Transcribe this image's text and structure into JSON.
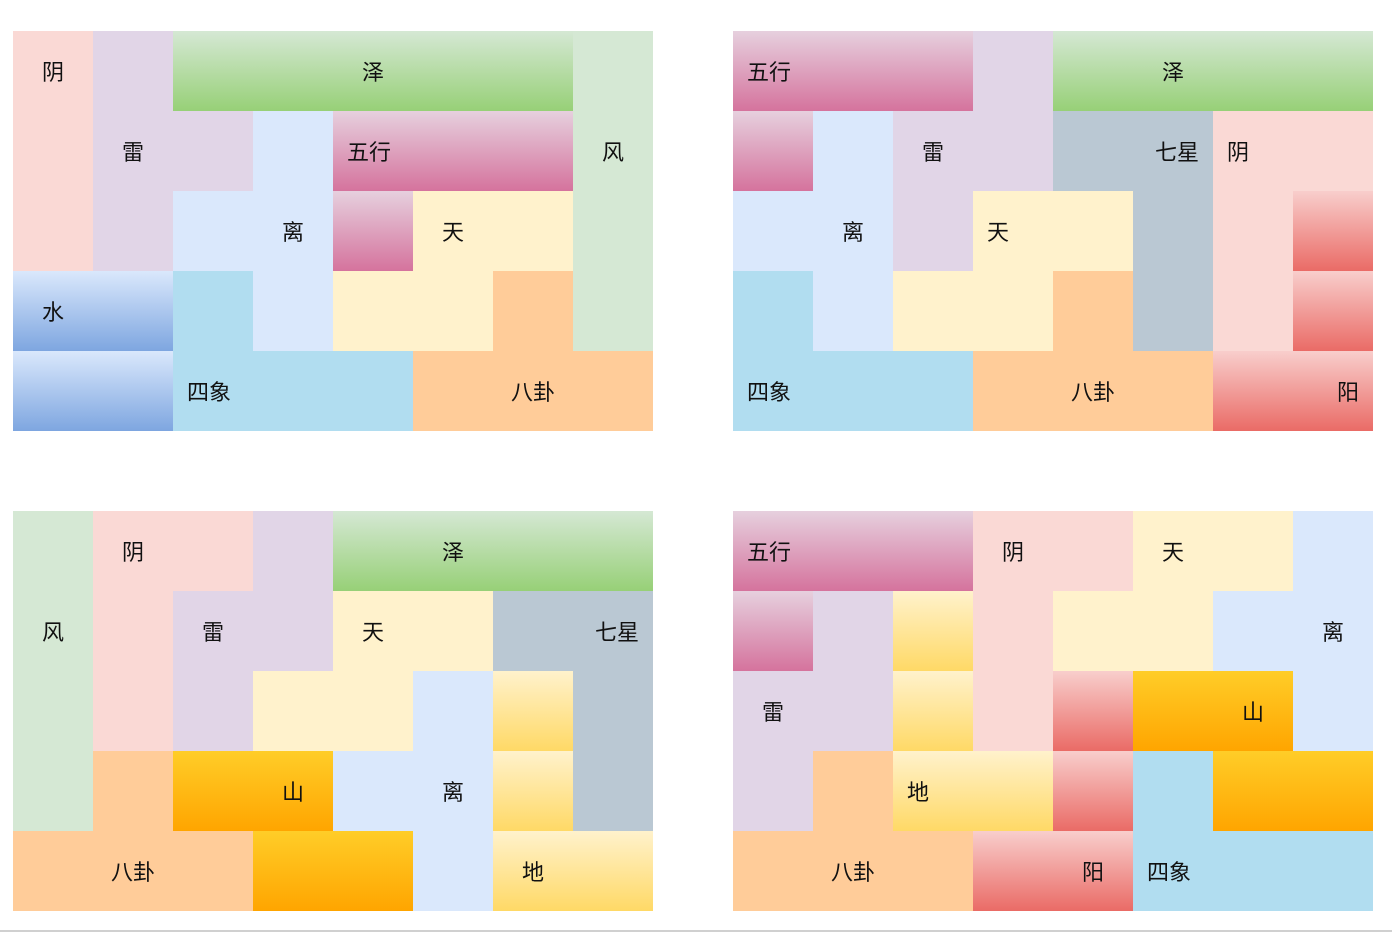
{
  "colors": {
    "pink": "#fad9d5",
    "lavender": "#e1d5e7",
    "lightblue": "#dae8fc",
    "skyblue": "#b1ddf0",
    "cream": "#fff2cc",
    "peach": "#ffcc99",
    "mint": "#d5e8d4",
    "slate": "#bac8d3",
    "green": [
      "#d5e8d4",
      "#97d077"
    ],
    "magenta": [
      "#e6d0de",
      "#d5739d"
    ],
    "blue": [
      "#dae8fc",
      "#7ea6e0"
    ],
    "red": [
      "#f8cecc",
      "#ea6b66"
    ],
    "orange": [
      "#ffcd28",
      "#ffa500"
    ],
    "yellow": [
      "#fff2cc",
      "#ffd966"
    ]
  },
  "puzzles": [
    {
      "grid": [
        [
          "pink",
          "lavender",
          "green",
          "green",
          "green",
          "green",
          "green",
          "mint"
        ],
        [
          "pink",
          "lavender",
          "lavender",
          "lightblue",
          "magenta",
          "magenta",
          "magenta",
          "mint"
        ],
        [
          "pink",
          "lavender",
          "lightblue",
          "lightblue",
          "magenta",
          "cream",
          "cream",
          "mint"
        ],
        [
          "blue",
          "blue",
          "skyblue",
          "lightblue",
          "cream",
          "cream",
          "peach",
          "mint"
        ],
        [
          "blue",
          "blue",
          "skyblue",
          "skyblue",
          "skyblue",
          "peach",
          "peach",
          "peach"
        ]
      ],
      "labels": [
        {
          "text": "阴",
          "r": 0,
          "c": 0,
          "align": "center"
        },
        {
          "text": "泽",
          "r": 0,
          "c": 4,
          "align": "center"
        },
        {
          "text": "雷",
          "r": 1,
          "c": 1,
          "align": "center"
        },
        {
          "text": "五行",
          "r": 1,
          "c": 4,
          "align": "left"
        },
        {
          "text": "风",
          "r": 1,
          "c": 7,
          "align": "center"
        },
        {
          "text": "离",
          "r": 2,
          "c": 3,
          "align": "center"
        },
        {
          "text": "天",
          "r": 2,
          "c": 5,
          "align": "center"
        },
        {
          "text": "水",
          "r": 3,
          "c": 0,
          "align": "center"
        },
        {
          "text": "四象",
          "r": 4,
          "c": 2,
          "align": "left"
        },
        {
          "text": "八卦",
          "r": 4,
          "c": 6,
          "align": "center"
        }
      ]
    },
    {
      "grid": [
        [
          "magenta",
          "magenta",
          "magenta",
          "lavender",
          "green",
          "green",
          "green",
          "green"
        ],
        [
          "magenta",
          "lightblue",
          "lavender",
          "lavender",
          "slate",
          "slate",
          "pink",
          "pink"
        ],
        [
          "lightblue",
          "lightblue",
          "lavender",
          "cream",
          "cream",
          "slate",
          "pink",
          "red"
        ],
        [
          "skyblue",
          "lightblue",
          "cream",
          "cream",
          "peach",
          "slate",
          "pink",
          "red"
        ],
        [
          "skyblue",
          "skyblue",
          "skyblue",
          "peach",
          "peach",
          "peach",
          "red",
          "red"
        ]
      ],
      "labels": [
        {
          "text": "五行",
          "r": 0,
          "c": 0,
          "align": "left"
        },
        {
          "text": "泽",
          "r": 0,
          "c": 5,
          "align": "center"
        },
        {
          "text": "雷",
          "r": 1,
          "c": 2,
          "align": "center"
        },
        {
          "text": "七星",
          "r": 1,
          "c": 5,
          "align": "right"
        },
        {
          "text": "阴",
          "r": 1,
          "c": 6,
          "align": "left"
        },
        {
          "text": "离",
          "r": 2,
          "c": 1,
          "align": "center"
        },
        {
          "text": "天",
          "r": 2,
          "c": 3,
          "align": "left"
        },
        {
          "text": "四象",
          "r": 4,
          "c": 0,
          "align": "left"
        },
        {
          "text": "八卦",
          "r": 4,
          "c": 4,
          "align": "center"
        },
        {
          "text": "阳",
          "r": 4,
          "c": 7,
          "align": "right"
        }
      ]
    },
    {
      "grid": [
        [
          "mint",
          "pink",
          "pink",
          "lavender",
          "green",
          "green",
          "green",
          "green"
        ],
        [
          "mint",
          "pink",
          "lavender",
          "lavender",
          "cream",
          "cream",
          "slate",
          "slate"
        ],
        [
          "mint",
          "pink",
          "lavender",
          "cream",
          "cream",
          "lightblue",
          "yellow",
          "slate"
        ],
        [
          "mint",
          "peach",
          "orange",
          "orange",
          "lightblue",
          "lightblue",
          "yellow",
          "slate"
        ],
        [
          "peach",
          "peach",
          "peach",
          "orange",
          "orange",
          "lightblue",
          "yellow",
          "yellow"
        ]
      ],
      "labels": [
        {
          "text": "阴",
          "r": 0,
          "c": 1,
          "align": "center"
        },
        {
          "text": "泽",
          "r": 0,
          "c": 5,
          "align": "center"
        },
        {
          "text": "风",
          "r": 1,
          "c": 0,
          "align": "center"
        },
        {
          "text": "雷",
          "r": 1,
          "c": 2,
          "align": "center"
        },
        {
          "text": "天",
          "r": 1,
          "c": 4,
          "align": "center"
        },
        {
          "text": "七星",
          "r": 1,
          "c": 7,
          "align": "right"
        },
        {
          "text": "山",
          "r": 3,
          "c": 3,
          "align": "center"
        },
        {
          "text": "离",
          "r": 3,
          "c": 5,
          "align": "center"
        },
        {
          "text": "八卦",
          "r": 4,
          "c": 1,
          "align": "center"
        },
        {
          "text": "地",
          "r": 4,
          "c": 6,
          "align": "center"
        }
      ]
    },
    {
      "grid": [
        [
          "magenta",
          "magenta",
          "magenta",
          "pink",
          "pink",
          "cream",
          "cream",
          "lightblue"
        ],
        [
          "magenta",
          "lavender",
          "yellow",
          "pink",
          "cream",
          "cream",
          "lightblue",
          "lightblue"
        ],
        [
          "lavender",
          "lavender",
          "yellow",
          "pink",
          "red",
          "orange",
          "orange",
          "lightblue"
        ],
        [
          "lavender",
          "peach",
          "yellow",
          "yellow",
          "red",
          "skyblue",
          "orange",
          "orange"
        ],
        [
          "peach",
          "peach",
          "peach",
          "red",
          "red",
          "skyblue",
          "skyblue",
          "skyblue"
        ]
      ],
      "labels": [
        {
          "text": "五行",
          "r": 0,
          "c": 0,
          "align": "left"
        },
        {
          "text": "阴",
          "r": 0,
          "c": 3,
          "align": "center"
        },
        {
          "text": "天",
          "r": 0,
          "c": 5,
          "align": "center"
        },
        {
          "text": "离",
          "r": 1,
          "c": 7,
          "align": "center"
        },
        {
          "text": "雷",
          "r": 2,
          "c": 0,
          "align": "center"
        },
        {
          "text": "山",
          "r": 2,
          "c": 6,
          "align": "center"
        },
        {
          "text": "地",
          "r": 3,
          "c": 2,
          "align": "left"
        },
        {
          "text": "八卦",
          "r": 4,
          "c": 1,
          "align": "center"
        },
        {
          "text": "阳",
          "r": 4,
          "c": 4,
          "align": "center"
        },
        {
          "text": "四象",
          "r": 4,
          "c": 5,
          "align": "left"
        }
      ]
    }
  ]
}
